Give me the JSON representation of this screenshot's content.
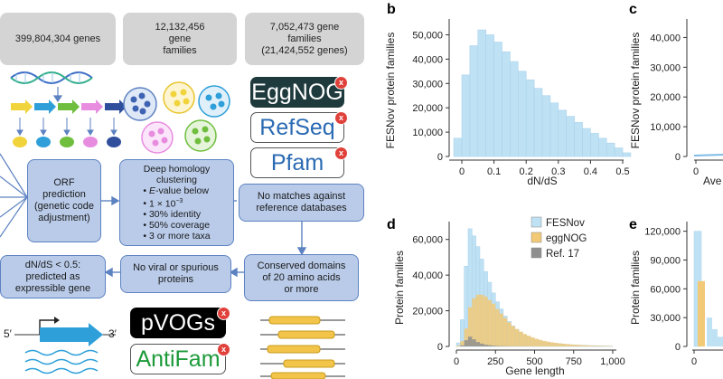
{
  "left": {
    "counts": {
      "genes": "399,804,304 genes",
      "gene_families_num": "12,132,456",
      "gene_families_word": "gene",
      "gene_families_word2": "families",
      "families_line1": "7,052,473 gene",
      "families_line2": "families",
      "families_line3": "(21,424,552 genes)"
    },
    "orf": {
      "l1": "ORF",
      "l2": "prediction",
      "l3": "(genetic code",
      "l4": "adjustment)"
    },
    "homology": {
      "l1": "Deep homology",
      "l2": "clustering",
      "b1_pre": "E",
      "b1_post": "-value below",
      "b2": "1 × 10",
      "b2_exp": "−3",
      "b3": "30% identity",
      "b4": "50% coverage",
      "b5": "3 or more taxa"
    },
    "no_matches": {
      "l1": "No matches against",
      "l2": "reference databases"
    },
    "conserved": {
      "l1": "Conserved domains",
      "l2": "of 20 amino acids",
      "l3": "or more"
    },
    "no_viral": {
      "l1": "No viral or spurious",
      "l2": "proteins"
    },
    "dnds": {
      "l1": "dN/dS < 0.5:",
      "l2": "predicted as",
      "l3": "expressible gene"
    },
    "databases": {
      "eggnog": "EggNOG",
      "refseq": "RefSeq",
      "pfam": "Pfam",
      "pvogs": "pVOGs",
      "antifam": "AntiFam",
      "x_mark": "x"
    },
    "gene_labels": {
      "five": "5′",
      "three": "3′"
    },
    "colors": {
      "box_fill": "#b9cbe9",
      "box_border": "#5d82c1",
      "grey": "#d4d4d4",
      "eggnog_bg": "#1f3a3d",
      "refseq_text": "#2a6ab3",
      "antifam_text": "#1d9a3a",
      "badge": "#e0413a"
    }
  },
  "panels": {
    "b": "b",
    "c": "c",
    "d": "d",
    "e": "e"
  },
  "chart_data": [
    {
      "panel": "b",
      "type": "bar",
      "xlabel": "dN/dS",
      "ylabel": "FESNov protein families",
      "x_ticks": [
        "0",
        "0.1",
        "0.2",
        "0.3",
        "0.4",
        "0.5"
      ],
      "y_ticks": [
        "0",
        "10,000",
        "20,000",
        "30,000",
        "40,000",
        "50,000"
      ],
      "ylim": [
        0,
        55000
      ],
      "bin_width": 0.025,
      "bin_starts": [
        -0.025,
        0.0,
        0.025,
        0.05,
        0.075,
        0.1,
        0.125,
        0.15,
        0.175,
        0.2,
        0.225,
        0.25,
        0.275,
        0.3,
        0.325,
        0.35,
        0.375,
        0.4,
        0.425,
        0.45,
        0.475,
        0.5
      ],
      "values": [
        7500,
        33500,
        45500,
        52000,
        50000,
        47000,
        43000,
        39000,
        35000,
        31500,
        28000,
        25000,
        22000,
        19000,
        16500,
        14000,
        11500,
        9500,
        7500,
        5500,
        3500,
        1500
      ],
      "color": "#bfe1f4"
    },
    {
      "panel": "c",
      "type": "line",
      "xlabel": "Ave",
      "ylabel": "FESNov protein families",
      "x_ticks": [
        "0"
      ],
      "y_ticks": [
        "0",
        "10,000",
        "20,000",
        "30,000",
        "40,000"
      ],
      "ylim": [
        0,
        45000
      ]
    },
    {
      "panel": "d",
      "type": "bar",
      "xlabel": "Gene length",
      "ylabel": "Protein families",
      "x_ticks": [
        "0",
        "250",
        "500",
        "750",
        "1,000"
      ],
      "y_ticks": [
        "0",
        "20,000",
        "40,000",
        "60,000"
      ],
      "ylim": [
        0,
        70000
      ],
      "bin_width": 25,
      "bin_starts": [
        0,
        25,
        50,
        75,
        100,
        125,
        150,
        175,
        200,
        225,
        250,
        275,
        300,
        325,
        350,
        375,
        400,
        425,
        450,
        475,
        500,
        525,
        550,
        575,
        600,
        625,
        650,
        675,
        700,
        725,
        750,
        775,
        800,
        825,
        850,
        875,
        900,
        925,
        950,
        975
      ],
      "series": [
        {
          "name": "FESNov",
          "color": "#bfe1f4",
          "values": [
            2000,
            15000,
            45000,
            66000,
            62000,
            56000,
            49000,
            42000,
            36000,
            30000,
            25000,
            21000,
            17000,
            14000,
            11500,
            9500,
            8000,
            6500,
            5500,
            4500,
            3800,
            3200,
            2700,
            2300,
            2000,
            1700,
            1500,
            1300,
            1100,
            950,
            850,
            750,
            650,
            550,
            480,
            420,
            360,
            300,
            250,
            200
          ]
        },
        {
          "name": "eggNOG",
          "color": "#f2c977",
          "values": [
            500,
            3000,
            10000,
            22000,
            27000,
            29000,
            29000,
            28000,
            26000,
            24000,
            21000,
            18500,
            16000,
            13500,
            11500,
            9800,
            8300,
            7000,
            6000,
            5100,
            4300,
            3700,
            3100,
            2700,
            2300,
            2000,
            1700,
            1500,
            1300,
            1100,
            950,
            820,
            700,
            600,
            520,
            450,
            390,
            330,
            280,
            230
          ]
        },
        {
          "name": "Ref. 17",
          "color": "#8f8f8f",
          "values": [
            0,
            600,
            3500,
            5500,
            4000,
            2500,
            1600,
            1000,
            700,
            450,
            300,
            200,
            150,
            100,
            80,
            60,
            40,
            30,
            20,
            10,
            0,
            0,
            0,
            0,
            0,
            0,
            0,
            0,
            0,
            0,
            0,
            0,
            0,
            0,
            0,
            0,
            0,
            0,
            0,
            0
          ]
        }
      ]
    },
    {
      "panel": "e",
      "type": "bar",
      "xlabel": "",
      "ylabel": "Protein families",
      "x_ticks": [
        "0"
      ],
      "y_ticks": [
        "0",
        "30,000",
        "60,000",
        "90,000",
        "120,000"
      ],
      "ylim": [
        0,
        130000
      ],
      "series": [
        {
          "name": "FESNov",
          "color": "#bfe1f4",
          "values": [
            120000
          ]
        },
        {
          "name": "eggNOG",
          "color": "#f2c977",
          "values": [
            68000
          ]
        }
      ]
    }
  ]
}
